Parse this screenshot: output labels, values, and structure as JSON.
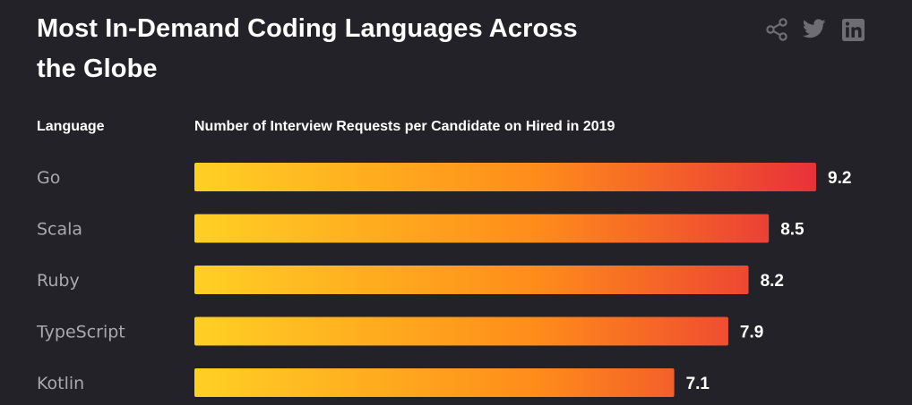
{
  "title": "Most In-Demand Coding Languages Across the Globe",
  "share": {
    "share_icon": "share-icon",
    "twitter_icon": "twitter-icon",
    "linkedin_icon": "linkedin-icon"
  },
  "colors": {
    "background": "#232228",
    "bar_gradient_start": "#FFD024",
    "bar_gradient_mid": "#FF8C1A",
    "bar_gradient_end": "#E8313A",
    "category_text": "#A9A8AE",
    "value_text": "#FFFFFF",
    "icon": "#6E6D74"
  },
  "chart_data": {
    "type": "bar",
    "orientation": "horizontal",
    "category_header": "Language",
    "value_header": "Number of Interview Requests per Candidate on Hired in 2019",
    "categories": [
      "Go",
      "Scala",
      "Ruby",
      "TypeScript",
      "Kotlin"
    ],
    "values": [
      9.2,
      8.5,
      8.2,
      7.9,
      7.1
    ],
    "value_labels": [
      "9.2",
      "8.5",
      "8.2",
      "7.9",
      "7.1"
    ],
    "grid": false,
    "legend": "none"
  }
}
